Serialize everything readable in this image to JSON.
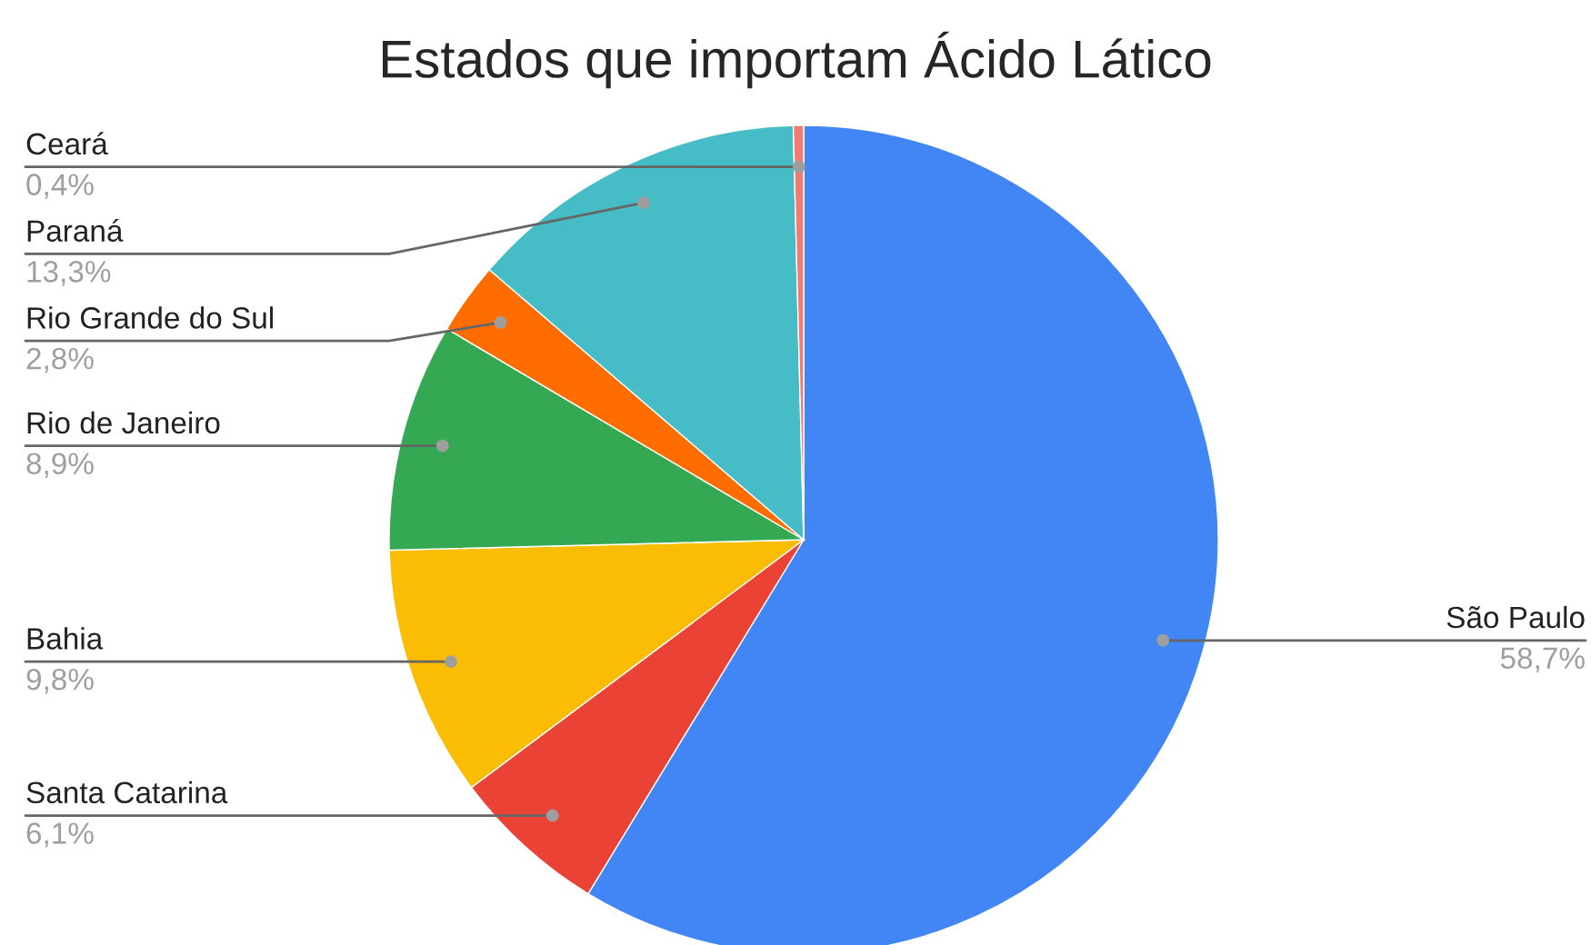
{
  "chart_data": {
    "type": "pie",
    "title": "Estados que importam Ácido Lático",
    "categories": [
      "São Paulo",
      "Santa Catarina",
      "Bahia",
      "Rio de Janeiro",
      "Rio Grande do Sul",
      "Paraná",
      "Ceará"
    ],
    "values": [
      58.7,
      6.1,
      9.8,
      8.9,
      2.8,
      13.3,
      0.4
    ],
    "colors": [
      "#4285f4",
      "#ea4335",
      "#fbbc04",
      "#34a853",
      "#ff6d01",
      "#46bdc6",
      "#f07b72"
    ],
    "value_labels": [
      "58,7%",
      "6,1%",
      "9,8%",
      "8,9%",
      "2,8%",
      "13,3%",
      "0,4%"
    ],
    "legend": false
  }
}
